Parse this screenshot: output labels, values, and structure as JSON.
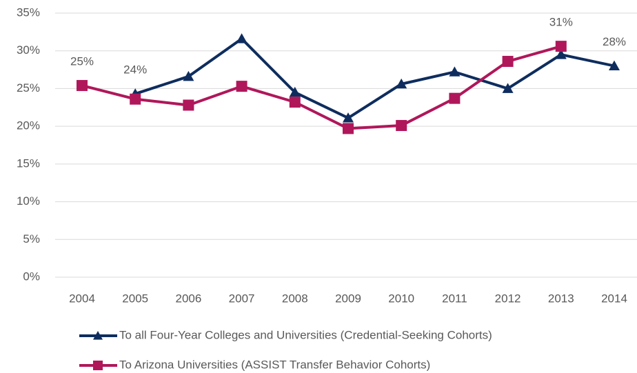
{
  "chart_data": {
    "type": "line",
    "categories": [
      "2004",
      "2005",
      "2006",
      "2007",
      "2008",
      "2009",
      "2010",
      "2011",
      "2012",
      "2013",
      "2014"
    ],
    "series": [
      {
        "name": "To all Four-Year Colleges and Universities (Credential-Seeking Cohorts)",
        "color": "#0e2d5e",
        "marker": "triangle",
        "values": [
          null,
          24.3,
          26.6,
          31.6,
          24.5,
          21.1,
          25.6,
          27.2,
          25.0,
          29.5,
          28.0
        ],
        "value_labels": [
          null,
          "24%",
          null,
          null,
          null,
          null,
          null,
          null,
          null,
          null,
          "28%"
        ]
      },
      {
        "name": "To Arizona Universities (ASSIST Transfer Behavior Cohorts)",
        "color": "#b0175a",
        "marker": "square",
        "values": [
          25.4,
          23.6,
          22.8,
          25.3,
          23.2,
          19.7,
          20.1,
          23.7,
          28.6,
          30.6,
          null
        ],
        "value_labels": [
          "25%",
          null,
          null,
          null,
          null,
          null,
          null,
          null,
          null,
          "31%",
          null
        ]
      }
    ],
    "ylim": [
      0,
      35
    ],
    "yticks": [
      {
        "value": 0,
        "label": "0%"
      },
      {
        "value": 5,
        "label": "5%"
      },
      {
        "value": 10,
        "label": "10%"
      },
      {
        "value": 15,
        "label": "15%"
      },
      {
        "value": 20,
        "label": "20%"
      },
      {
        "value": 25,
        "label": "25%"
      },
      {
        "value": 30,
        "label": "30%"
      },
      {
        "value": 35,
        "label": "35%"
      }
    ],
    "grid": true,
    "legend": "bottom"
  }
}
